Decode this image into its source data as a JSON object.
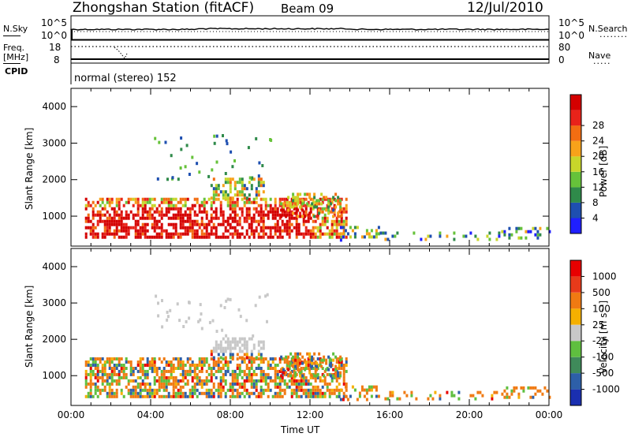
{
  "header": {
    "station": "Zhongshan Station (fitACF)",
    "beam": "Beam 09",
    "date": "12/Jul/2010"
  },
  "strip_panels": {
    "nsky_label": "N.Sky",
    "nsearch_label": "N.Search",
    "freq_label": "Freq.",
    "freq_unit": "[MHz]",
    "nave_label": "Nave",
    "cpid_label": "CPID",
    "cpid_text": "normal (stereo) 152",
    "left_ticks_top": [
      "10^5",
      "10^0"
    ],
    "right_ticks_top": [
      "10^5",
      "10^0"
    ],
    "left_ticks_freq": [
      "18",
      "8"
    ],
    "right_ticks_nave": [
      "80",
      "0"
    ]
  },
  "colors": {
    "power_scale": [
      "#1f1fff",
      "#1e4fb0",
      "#2f8a4a",
      "#66c23a",
      "#c8d62a",
      "#f7a21a",
      "#f26d12",
      "#e8231a",
      "#d40000"
    ],
    "velocity_scale": [
      "#1a2fb0",
      "#2d5fa8",
      "#3f8a5a",
      "#5fbf3f",
      "#c8c8c8",
      "#f5b000",
      "#f07a12",
      "#e83a1a",
      "#e80000"
    ]
  },
  "chart_data": [
    {
      "type": "heatmap",
      "title": "",
      "ylabel": "Slant Range [km]",
      "xlabel": "",
      "x_ticks": [
        "00:00",
        "04:00",
        "08:00",
        "12:00",
        "16:00",
        "20:00",
        "00:00"
      ],
      "y_ticks": [
        "1000",
        "2000",
        "3000",
        "4000"
      ],
      "ylim": [
        180,
        4500
      ],
      "xlim_hours": [
        0,
        24
      ],
      "colorbar": {
        "label": "Power [dB]",
        "ticks": [
          "4",
          "8",
          "12",
          "16",
          "20",
          "24",
          "28"
        ],
        "range": [
          0,
          30
        ]
      }
    },
    {
      "type": "heatmap",
      "title": "",
      "ylabel": "Slant Range [km]",
      "xlabel": "Time UT",
      "x_ticks": [
        "00:00",
        "04:00",
        "08:00",
        "12:00",
        "16:00",
        "20:00",
        "00:00"
      ],
      "y_ticks": [
        "1000",
        "2000",
        "3000",
        "4000"
      ],
      "ylim": [
        180,
        4500
      ],
      "xlim_hours": [
        0,
        24
      ],
      "colorbar": {
        "label": "Velocity [m s⁻¹]",
        "ticks": [
          "1000",
          "500",
          "100",
          "25",
          "-25",
          "-100",
          "-500",
          "-1000"
        ],
        "range": [
          -1000,
          1000
        ]
      }
    }
  ]
}
